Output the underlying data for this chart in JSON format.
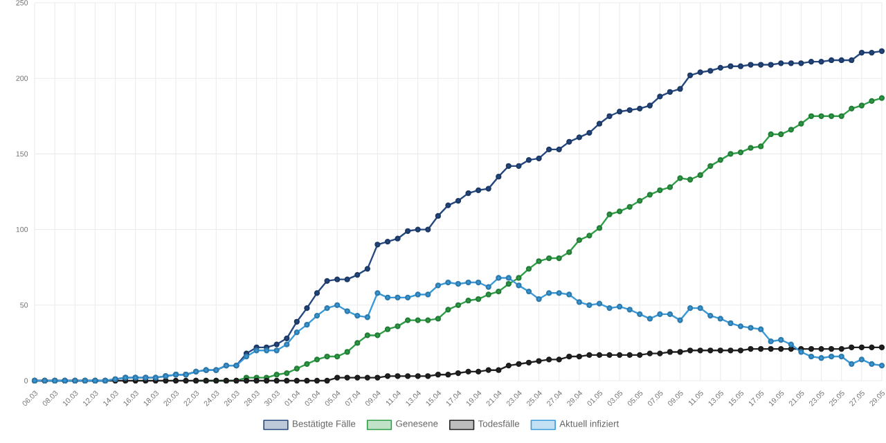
{
  "chart_data": {
    "type": "line",
    "categories": [
      "06.03",
      null,
      "08.03",
      null,
      "10.03",
      null,
      "12.03",
      null,
      "14.03",
      null,
      "16.03",
      null,
      "18.03",
      null,
      "20.03",
      null,
      "22.03",
      null,
      "24.03",
      null,
      "26.03",
      null,
      "28.03",
      null,
      "30.03",
      null,
      "01.04",
      null,
      "03.04",
      null,
      "05.04",
      null,
      "07.04",
      null,
      "09.04",
      null,
      "11.04",
      null,
      "13.04",
      null,
      "15.04",
      null,
      "17.04",
      null,
      "19.04",
      null,
      "21.04",
      null,
      "23.04",
      null,
      "25.04",
      null,
      "27.04",
      null,
      "29.04",
      null,
      "01.05",
      null,
      "03.05",
      null,
      "05.05",
      null,
      "07.05",
      null,
      "09.05",
      null,
      "11.05",
      null,
      "13.05",
      null,
      "15.05",
      null,
      "17.05",
      null,
      "19.05",
      null,
      "21.05",
      null,
      "23.05",
      null,
      "25.05",
      null,
      "27.05",
      null,
      "29.05"
    ],
    "series": [
      {
        "name": "Bestätigte Fälle",
        "color": "#24487f",
        "values": [
          0,
          0,
          0,
          0,
          0,
          0,
          0,
          0,
          1,
          2,
          2,
          2,
          2,
          3,
          4,
          4,
          6,
          7,
          7,
          10,
          10,
          18,
          22,
          22,
          24,
          28,
          39,
          48,
          58,
          66,
          67,
          67,
          70,
          74,
          90,
          92,
          94,
          99,
          100,
          100,
          109,
          116,
          119,
          124,
          126,
          127,
          135,
          142,
          142,
          146,
          147,
          153,
          153,
          158,
          161,
          164,
          170,
          175,
          178,
          179,
          180,
          182,
          188,
          191,
          193,
          202,
          204,
          205,
          207,
          208,
          208,
          209,
          209,
          209,
          210,
          210,
          210,
          211,
          211,
          212,
          212,
          212,
          217,
          217,
          218
        ]
      },
      {
        "name": "Genesene",
        "color": "#2e9e46",
        "values": [
          null,
          null,
          null,
          null,
          null,
          null,
          null,
          null,
          null,
          null,
          null,
          null,
          null,
          null,
          null,
          null,
          0,
          0,
          0,
          0,
          0,
          2,
          2,
          2,
          4,
          5,
          8,
          11,
          14,
          16,
          16,
          19,
          25,
          30,
          30,
          34,
          36,
          40,
          40,
          40,
          41,
          47,
          50,
          53,
          54,
          57,
          59,
          64,
          68,
          74,
          79,
          81,
          81,
          85,
          93,
          96,
          101,
          110,
          112,
          115,
          119,
          123,
          126,
          128,
          134,
          133,
          136,
          142,
          146,
          150,
          151,
          154,
          155,
          163,
          163,
          166,
          170,
          175,
          175,
          175,
          175,
          180,
          182,
          185,
          187
        ]
      },
      {
        "name": "Todesfälle",
        "color": "#222222",
        "values": [
          0,
          0,
          0,
          0,
          0,
          0,
          0,
          0,
          0,
          0,
          0,
          0,
          0,
          0,
          0,
          0,
          0,
          0,
          0,
          0,
          0,
          0,
          0,
          0,
          0,
          0,
          0,
          0,
          0,
          0,
          2,
          2,
          2,
          2,
          2,
          3,
          3,
          3,
          3,
          3,
          4,
          4,
          5,
          6,
          6,
          7,
          7,
          10,
          11,
          12,
          13,
          14,
          14,
          16,
          16,
          17,
          17,
          17,
          17,
          17,
          17,
          18,
          18,
          19,
          19,
          20,
          20,
          20,
          20,
          20,
          20,
          21,
          21,
          21,
          21,
          21,
          21,
          21,
          21,
          21,
          21,
          22,
          22,
          22,
          22
        ]
      },
      {
        "name": "Aktuell infiziert",
        "color": "#3a9ad9",
        "values": [
          0,
          0,
          0,
          0,
          0,
          0,
          0,
          0,
          1,
          2,
          2,
          2,
          2,
          3,
          4,
          4,
          6,
          7,
          7,
          10,
          10,
          16,
          20,
          20,
          20,
          24,
          32,
          37,
          43,
          48,
          50,
          46,
          43,
          42,
          58,
          55,
          55,
          55,
          57,
          57,
          63,
          65,
          64,
          65,
          65,
          62,
          68,
          68,
          63,
          59,
          54,
          58,
          58,
          57,
          52,
          50,
          51,
          48,
          49,
          47,
          44,
          41,
          44,
          44,
          40,
          48,
          48,
          43,
          41,
          38,
          36,
          35,
          34,
          26,
          27,
          24,
          19,
          16,
          15,
          16,
          16,
          11,
          14,
          11,
          10
        ]
      }
    ],
    "ylim": [
      0,
      250
    ],
    "yticks": [
      0,
      50,
      100,
      150,
      200,
      250
    ],
    "grid": true,
    "legend": "bottom",
    "marker": "circle",
    "line_style": "solid"
  }
}
